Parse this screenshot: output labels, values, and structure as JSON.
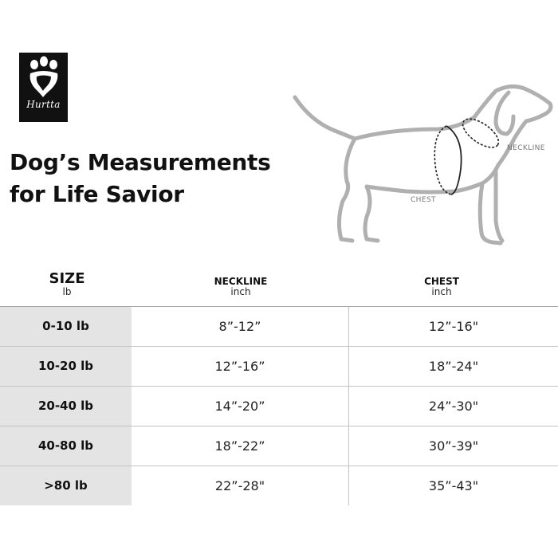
{
  "brand": {
    "name": "Hurtta",
    "icon": "paw-icon"
  },
  "title": {
    "line1": "Dog’s Measurements",
    "line2": "for Life Savior"
  },
  "illustration": {
    "icon": "dog-outline-icon",
    "neck_label": "NECKLINE",
    "chest_label": "CHEST"
  },
  "table": {
    "headers": {
      "size": {
        "label": "SIZE",
        "unit": "lb"
      },
      "neckline": {
        "label": "NECKLINE",
        "unit": "inch"
      },
      "chest": {
        "label": "CHEST",
        "unit": "inch"
      }
    },
    "rows": [
      {
        "size": "0-10 lb",
        "neckline": "8”-12”",
        "chest": "12”-16\""
      },
      {
        "size": "10-20 lb",
        "neckline": "12”-16”",
        "chest": "18”-24\""
      },
      {
        "size": "20-40 lb",
        "neckline": "14”-20”",
        "chest": "24”-30\""
      },
      {
        "size": "40-80 lb",
        "neckline": "18”-22”",
        "chest": "30”-39\""
      },
      {
        "size": ">80 lb",
        "neckline": "22”-28\"",
        "chest": "35”-43\""
      }
    ]
  },
  "colors": {
    "row_label_bg": "#e4e4e4",
    "divider": "#c4c4c4",
    "text": "#111111"
  }
}
